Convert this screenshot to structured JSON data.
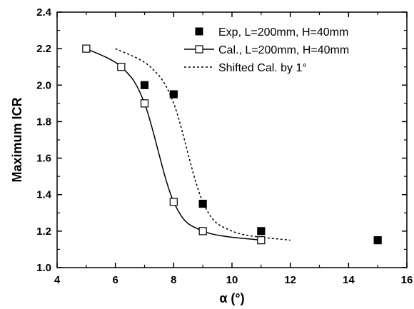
{
  "chart_data": {
    "type": "scatter",
    "title": "",
    "xlabel": "α (°)",
    "ylabel": "Maximum ICR",
    "xlim": [
      4,
      16
    ],
    "ylim": [
      1.0,
      2.4
    ],
    "x_ticks": [
      "4",
      "6",
      "8",
      "10",
      "12",
      "14",
      "16"
    ],
    "y_ticks": [
      "1.0",
      "1.2",
      "1.4",
      "1.6",
      "1.8",
      "2.0",
      "2.2",
      "2.4"
    ],
    "grid": false,
    "legend_position": "top-right",
    "series": [
      {
        "name": "Exp, L=200mm, H=40mm",
        "kind": "scatter",
        "marker": "filled-square",
        "color": "#000000",
        "x": [
          7,
          8,
          9,
          11,
          15
        ],
        "y": [
          2.0,
          1.95,
          1.35,
          1.2,
          1.15
        ]
      },
      {
        "name": "Cal., L=200mm, H=40mm",
        "kind": "line+markers",
        "marker": "open-square",
        "line_style": "solid",
        "color": "#000000",
        "x": [
          5,
          6.2,
          7,
          8,
          9,
          11
        ],
        "y": [
          2.2,
          2.1,
          1.9,
          1.36,
          1.2,
          1.15
        ]
      },
      {
        "name": "Shifted Cal. by 1°",
        "kind": "line",
        "line_style": "dashed",
        "color": "#000000",
        "x": [
          6,
          7.2,
          8,
          9,
          10,
          12
        ],
        "y": [
          2.2,
          2.1,
          1.9,
          1.36,
          1.2,
          1.15
        ]
      }
    ]
  }
}
